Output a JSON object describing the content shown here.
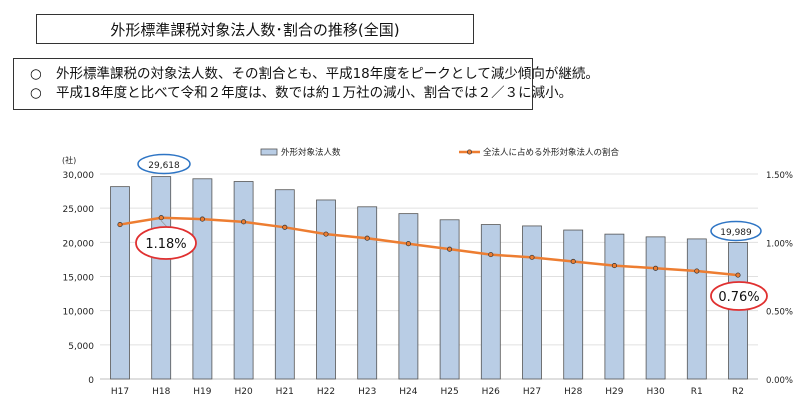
{
  "header": {
    "title": "外形標準課税対象法人数･割合の推移(全国)",
    "bullets": [
      {
        "mark": "○",
        "text": "外形標準課税の対象法人数、その割合とも、平成18年度をピークとして減少傾向が継続。"
      },
      {
        "mark": "○",
        "text": "平成18年度と比べて令和２年度は、数では約１万社の減小、割合では２／３に減小。"
      }
    ]
  },
  "chart_data": {
    "type": "bar+line",
    "categories": [
      "H17",
      "H18",
      "H19",
      "H20",
      "H21",
      "H22",
      "H23",
      "H24",
      "H25",
      "H26",
      "H27",
      "H28",
      "H29",
      "H30",
      "R1",
      "R2"
    ],
    "series": [
      {
        "name": "外形対象法人数",
        "type": "bar",
        "axis": "left",
        "color": "#b9cde5",
        "values": [
          28150,
          29618,
          29300,
          28900,
          27700,
          26200,
          25200,
          24200,
          23300,
          22600,
          22400,
          21800,
          21200,
          20800,
          20500,
          19989
        ]
      },
      {
        "name": "全法人に占める外形対象法人の割合",
        "type": "line",
        "axis": "right",
        "color": "#ed7d31",
        "values": [
          1.13,
          1.18,
          1.17,
          1.15,
          1.11,
          1.06,
          1.03,
          0.99,
          0.95,
          0.91,
          0.89,
          0.86,
          0.83,
          0.81,
          0.79,
          0.76
        ]
      }
    ],
    "left_axis": {
      "unit_label": "(社)",
      "ylim": [
        0,
        30000
      ],
      "ticks": [
        "0",
        "5,000",
        "10,000",
        "15,000",
        "20,000",
        "25,000",
        "30,000"
      ]
    },
    "right_axis": {
      "ylim": [
        0,
        1.5
      ],
      "ticks": [
        "0.00%",
        "0.50%",
        "1.00%",
        "1.50%"
      ]
    },
    "grid": true,
    "legend": "top",
    "annotations": [
      {
        "text": "29,618",
        "category": "H18",
        "style": "blue-ellipse"
      },
      {
        "text": "19,989",
        "category": "R2",
        "style": "blue-ellipse"
      },
      {
        "text": "1.18%",
        "category": "H18",
        "style": "red-ellipse"
      },
      {
        "text": "0.76%",
        "category": "R2",
        "style": "red-ellipse"
      }
    ]
  }
}
